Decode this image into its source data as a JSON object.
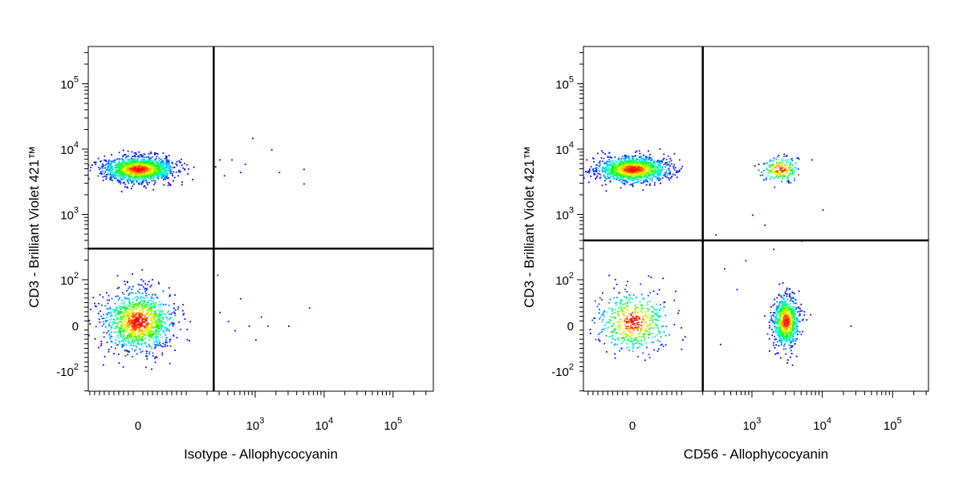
{
  "chart_data": [
    {
      "type": "scatter",
      "style": "flow-cytometry-density-dot-plot",
      "xlabel": "Isotype - Allophycocyanin",
      "ylabel": "CD3 - Brilliant Violet 421™",
      "x_scale": "biexponential",
      "y_scale": "biexponential",
      "x_ticks": [
        {
          "value": "0",
          "label": "0"
        },
        {
          "value": "1000",
          "base": "10",
          "exp": "3"
        },
        {
          "value": "10000",
          "base": "10",
          "exp": "4"
        },
        {
          "value": "100000",
          "base": "10",
          "exp": "5"
        }
      ],
      "y_ticks": [
        {
          "value": "100000",
          "base": "10",
          "exp": "5"
        },
        {
          "value": "10000",
          "base": "10",
          "exp": "4"
        },
        {
          "value": "1000",
          "base": "10",
          "exp": "3"
        },
        {
          "value": "100",
          "base": "10",
          "exp": "2"
        },
        {
          "value": "0",
          "label": "0"
        },
        {
          "value": "-100",
          "base": "-10",
          "exp": "2"
        }
      ],
      "quadrant_gate": {
        "x": 250,
        "y": 300
      },
      "populations": [
        {
          "x": 0,
          "y": 5000,
          "count": 1500,
          "spread_x": 80,
          "spread_y": 2500
        },
        {
          "x": 0,
          "y": 10,
          "count": 1200,
          "spread_x": 80,
          "spread_y": 60
        }
      ],
      "sparse_points": [
        {
          "x": 300,
          "y": 7000
        },
        {
          "x": 450,
          "y": 7000
        },
        {
          "x": 700,
          "y": 6000
        },
        {
          "x": 900,
          "y": 15000
        },
        {
          "x": 1700,
          "y": 10000
        },
        {
          "x": 2200,
          "y": 4500
        },
        {
          "x": 5000,
          "y": 5000
        },
        {
          "x": 5000,
          "y": 3000
        },
        {
          "x": 350,
          "y": 4000
        },
        {
          "x": 600,
          "y": 4500
        },
        {
          "x": 260,
          "y": 5500
        },
        {
          "x": 300,
          "y": 30
        },
        {
          "x": 400,
          "y": 10
        },
        {
          "x": 600,
          "y": 60
        },
        {
          "x": 800,
          "y": 0
        },
        {
          "x": 1200,
          "y": 20
        },
        {
          "x": 1500,
          "y": 0
        },
        {
          "x": 3000,
          "y": 0
        },
        {
          "x": 6000,
          "y": 40
        },
        {
          "x": 500,
          "y": -10
        },
        {
          "x": 280,
          "y": 120
        },
        {
          "x": 1000,
          "y": -30
        }
      ],
      "color_scale": [
        "#0000ff",
        "#00ffff",
        "#00ff00",
        "#ffff00",
        "#ff0000"
      ]
    },
    {
      "type": "scatter",
      "style": "flow-cytometry-density-dot-plot",
      "xlabel": "CD56 - Allophycocyanin",
      "ylabel": "CD3 - Brilliant Violet 421™",
      "x_scale": "biexponential",
      "y_scale": "biexponential",
      "x_ticks": [
        {
          "value": "0",
          "label": "0"
        },
        {
          "value": "1000",
          "base": "10",
          "exp": "3"
        },
        {
          "value": "10000",
          "base": "10",
          "exp": "4"
        },
        {
          "value": "100000",
          "base": "10",
          "exp": "5"
        }
      ],
      "y_ticks": [
        {
          "value": "100000",
          "base": "10",
          "exp": "5"
        },
        {
          "value": "10000",
          "base": "10",
          "exp": "4"
        },
        {
          "value": "1000",
          "base": "10",
          "exp": "3"
        },
        {
          "value": "100",
          "base": "10",
          "exp": "2"
        },
        {
          "value": "0",
          "label": "0"
        },
        {
          "value": "-100",
          "base": "-10",
          "exp": "2"
        }
      ],
      "quadrant_gate": {
        "x": 200,
        "y": 400
      },
      "populations": [
        {
          "x": 0,
          "y": 5000,
          "count": 1300,
          "spread_x": 80,
          "spread_y": 2500
        },
        {
          "x": 0,
          "y": 10,
          "count": 500,
          "spread_x": 80,
          "spread_y": 60
        },
        {
          "x": 3000,
          "y": 10,
          "count": 800,
          "spread_x": 1800,
          "spread_y": 50
        },
        {
          "x": 2500,
          "y": 5000,
          "count": 180,
          "spread_x": 2500,
          "spread_y": 2500
        }
      ],
      "sparse_points": [
        {
          "x": 1000,
          "y": 1000
        },
        {
          "x": 300,
          "y": 500
        },
        {
          "x": 1500,
          "y": 700
        },
        {
          "x": 600,
          "y": 80
        },
        {
          "x": 400,
          "y": 150
        },
        {
          "x": 5000,
          "y": 400
        },
        {
          "x": 10000,
          "y": 1200
        },
        {
          "x": 7000,
          "y": 7000
        },
        {
          "x": 25000,
          "y": 0
        },
        {
          "x": 350,
          "y": -40
        },
        {
          "x": 800,
          "y": 200
        },
        {
          "x": 2000,
          "y": 300
        }
      ],
      "color_scale": [
        "#0000ff",
        "#00ffff",
        "#00ff00",
        "#ffff00",
        "#ff0000"
      ]
    }
  ]
}
